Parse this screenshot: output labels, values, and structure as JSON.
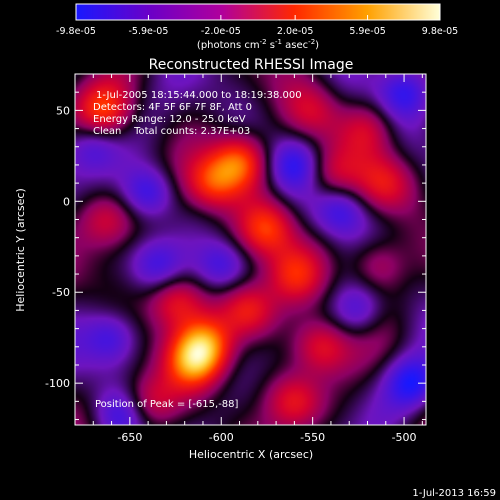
{
  "chart_data": {
    "type": "heatmap",
    "title": "Reconstructed RHESSI Image",
    "xlabel": "Heliocentric X (arcsec)",
    "ylabel": "Heliocentric Y (arcsec)",
    "xlim": [
      -680,
      -488
    ],
    "ylim": [
      -123,
      70
    ],
    "xticks": [
      -650,
      -600,
      -550,
      -500
    ],
    "yticks": [
      50,
      0,
      -50,
      -100
    ],
    "xtick_labels": [
      "-650",
      "-600",
      "-550",
      "-500"
    ],
    "ytick_labels": [
      "50",
      "0",
      "-50",
      "-100"
    ],
    "colorbar": {
      "range": [
        -9.8e-05,
        9.8e-05
      ],
      "ticks": [
        -9.8e-05,
        -5.9e-05,
        -2e-05,
        2e-05,
        5.9e-05,
        9.8e-05
      ],
      "tick_labels": [
        "-9.8e-05",
        "-5.9e-05",
        "-2.0e-05",
        "2.0e-05",
        "5.9e-05",
        "9.8e-05"
      ],
      "label_main": "(photons cm",
      "label_exp1": "-2",
      "label_mid": " s",
      "label_exp2": "-1",
      "label_end": " asec",
      "label_exp3": "-2",
      "label_close": ")",
      "colors": [
        "#1818ff",
        "#6a00c8",
        "#b0009c",
        "#ff2800",
        "#ffa000",
        "#ffffd8"
      ]
    },
    "annotations": [
      "1-Jul-2005 18:15:44.000 to 18:19:38.000",
      "Detectors: 4F 5F 6F 7F 8F, Att 0",
      "Energy Range: 12.0 - 25.0 keV",
      "Clean    Total counts: 2.37E+03"
    ],
    "peak_label": "Position of Peak = [-615,-88]",
    "peak": [
      -615,
      -88
    ],
    "bright_sources": [
      {
        "x": -590,
        "y": 22,
        "v": 1.0
      },
      {
        "x": -605,
        "y": 10,
        "v": 0.85
      },
      {
        "x": -575,
        "y": -15,
        "v": 0.85
      },
      {
        "x": -615,
        "y": -88,
        "v": 1.0
      },
      {
        "x": -608,
        "y": -78,
        "v": 0.9
      },
      {
        "x": -625,
        "y": -55,
        "v": 0.75
      },
      {
        "x": -585,
        "y": -60,
        "v": 0.8
      },
      {
        "x": -560,
        "y": -40,
        "v": 0.7
      },
      {
        "x": -545,
        "y": -80,
        "v": 0.75
      },
      {
        "x": -560,
        "y": -110,
        "v": 0.7
      },
      {
        "x": -665,
        "y": 50,
        "v": 0.8
      },
      {
        "x": -663,
        "y": -10,
        "v": 0.6
      },
      {
        "x": -640,
        "y": -110,
        "v": 0.6
      },
      {
        "x": -515,
        "y": -35,
        "v": 0.6
      },
      {
        "x": -510,
        "y": 10,
        "v": 0.55
      },
      {
        "x": -520,
        "y": 40,
        "v": 0.5
      },
      {
        "x": -550,
        "y": 50,
        "v": 0.45
      },
      {
        "x": -540,
        "y": 15,
        "v": 0.5
      }
    ],
    "dark_regions": [
      {
        "x": -640,
        "y": 5,
        "v": 0.7
      },
      {
        "x": -560,
        "y": 20,
        "v": 0.6
      },
      {
        "x": -535,
        "y": -5,
        "v": 0.6
      },
      {
        "x": -660,
        "y": -75,
        "v": 0.6
      },
      {
        "x": -635,
        "y": -35,
        "v": 0.5
      },
      {
        "x": -600,
        "y": -35,
        "v": 0.6
      },
      {
        "x": -495,
        "y": -100,
        "v": 0.8
      },
      {
        "x": -500,
        "y": 60,
        "v": 0.6
      },
      {
        "x": -670,
        "y": 30,
        "v": 0.5
      },
      {
        "x": -655,
        "y": -118,
        "v": 0.5
      },
      {
        "x": -525,
        "y": -60,
        "v": 0.5
      }
    ]
  },
  "footer": {
    "timestamp": "1-Jul-2013 16:59"
  }
}
